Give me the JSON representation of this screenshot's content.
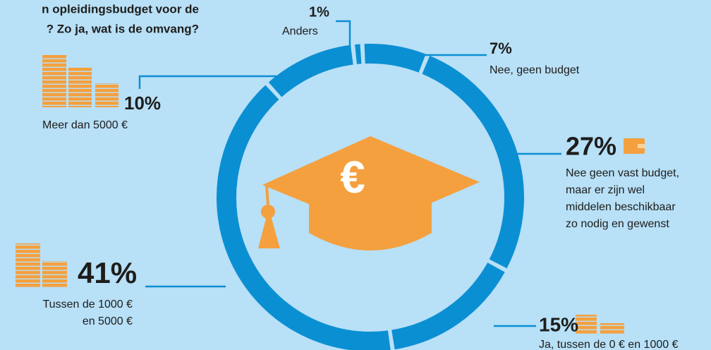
{
  "chart_data": {
    "type": "pie",
    "title_lines": [
      "n opleidingsbudget voor de",
      "? Zo ja, wat is de omvang?"
    ],
    "icon_symbol": "€",
    "color": "#0b8fd3",
    "values": [
      7,
      27,
      15,
      41,
      10,
      1
    ],
    "value_labels": [
      "7%",
      "27%",
      "15%",
      "41%",
      "10%",
      "1%"
    ],
    "categories": [
      [
        "Nee, geen budget"
      ],
      [
        "Nee geen vast budget,",
        "maar er zijn wel",
        "middelen beschikbaar",
        "zo nodig en gewenst"
      ],
      [
        "Ja, tussen de 0 € en 1000 €"
      ],
      [
        "Tussen de 1000 €",
        "en 5000 €"
      ],
      [
        "Meer dan 5000 €"
      ],
      [
        "Anders"
      ]
    ]
  }
}
